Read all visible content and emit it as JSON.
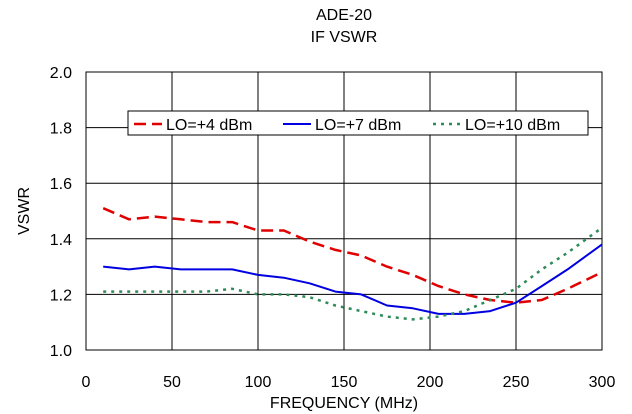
{
  "chart_data": {
    "type": "line",
    "title": "ADE-20",
    "subtitle": "IF VSWR",
    "xlabel": "FREQUENCY (MHz)",
    "ylabel": "VSWR",
    "xlim": [
      0,
      300
    ],
    "ylim": [
      1.0,
      2.0
    ],
    "x_ticks": [
      "0",
      "50",
      "100",
      "150",
      "200",
      "250",
      "300"
    ],
    "y_ticks": [
      "1.0",
      "1.2",
      "1.4",
      "1.6",
      "1.8",
      "2.0"
    ],
    "grid": true,
    "legend_position": "top-right",
    "series": [
      {
        "name": "LO=+4 dBm",
        "color": "#e00000",
        "dash": "long-dash",
        "x": [
          10,
          25,
          40,
          55,
          70,
          85,
          100,
          115,
          130,
          145,
          160,
          175,
          190,
          205,
          220,
          235,
          250,
          265,
          280,
          300
        ],
        "y": [
          1.51,
          1.47,
          1.48,
          1.47,
          1.46,
          1.46,
          1.43,
          1.43,
          1.39,
          1.36,
          1.34,
          1.3,
          1.27,
          1.23,
          1.2,
          1.18,
          1.17,
          1.18,
          1.22,
          1.28
        ]
      },
      {
        "name": "LO=+7 dBm",
        "color": "#0000e0",
        "dash": "solid",
        "x": [
          10,
          25,
          40,
          55,
          70,
          85,
          100,
          115,
          130,
          145,
          160,
          175,
          190,
          205,
          220,
          235,
          250,
          265,
          280,
          300
        ],
        "y": [
          1.3,
          1.29,
          1.3,
          1.29,
          1.29,
          1.29,
          1.27,
          1.26,
          1.24,
          1.21,
          1.2,
          1.16,
          1.15,
          1.13,
          1.13,
          1.14,
          1.17,
          1.23,
          1.29,
          1.38
        ]
      },
      {
        "name": "LO=+10 dBm",
        "color": "#2e8b57",
        "dash": "dotted",
        "x": [
          10,
          25,
          40,
          55,
          70,
          85,
          100,
          115,
          130,
          145,
          160,
          175,
          190,
          205,
          220,
          235,
          250,
          265,
          280,
          300
        ],
        "y": [
          1.21,
          1.21,
          1.21,
          1.21,
          1.21,
          1.22,
          1.2,
          1.2,
          1.19,
          1.16,
          1.14,
          1.12,
          1.11,
          1.12,
          1.14,
          1.18,
          1.22,
          1.29,
          1.35,
          1.44
        ]
      }
    ]
  }
}
